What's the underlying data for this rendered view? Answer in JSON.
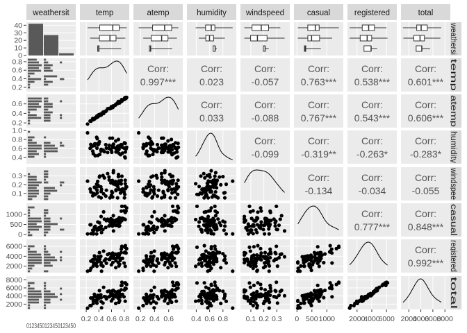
{
  "chart_data": {
    "type": "scatter-matrix",
    "variables": [
      "weathersit",
      "temp",
      "atemp",
      "humidity",
      "windspeed",
      "casual",
      "registered",
      "total"
    ],
    "strip_labels": {
      "top": [
        "weathersit",
        "temp",
        "atemp",
        "humidity",
        "windspeed",
        "casual",
        "registered",
        "total"
      ],
      "right": [
        "weathersi",
        "temp",
        "atemp",
        "humidity",
        "windspee",
        "casual",
        "registered",
        "total"
      ]
    },
    "weathersit_counts": [
      42,
      27,
      3
    ],
    "axes": {
      "weathersit": {
        "range": [
          0.4,
          3.6
        ]
      },
      "temp": {
        "range": [
          0.1,
          0.88
        ],
        "ticks": [
          0.2,
          0.4,
          0.6,
          0.8
        ]
      },
      "atemp": {
        "range": [
          0.1,
          0.8
        ],
        "ticks": [
          0.2,
          0.4,
          0.6
        ]
      },
      "humidity": {
        "range": [
          0.26,
          1.0
        ],
        "ticks": [
          0.4,
          0.6,
          0.8,
          1.0
        ],
        "ticks_x": [
          0.4,
          0.6,
          0.8
        ]
      },
      "windspeed": {
        "range": [
          0.02,
          0.4
        ],
        "ticks": [
          0.1,
          0.2,
          0.3
        ]
      },
      "casual": {
        "range": [
          -100,
          1550
        ],
        "ticks": [
          0,
          500,
          1000
        ]
      },
      "registered": {
        "range": [
          700,
          7400
        ],
        "ticks": [
          2000,
          4000,
          6000
        ]
      },
      "total": {
        "range": [
          700,
          8900
        ],
        "ticks": [
          2000,
          4000,
          6000,
          8000
        ]
      }
    },
    "count_axis": {
      "ticks": [
        0,
        10,
        20,
        30,
        40
      ]
    },
    "x_tick_labels": {
      "weathersit": "0123450123450123450",
      "temp": [
        "0.2",
        "0.4",
        "0.6",
        "0.8"
      ],
      "atemp": [
        "0.2",
        "0.4",
        "0.6"
      ],
      "humidity": [
        "0.4",
        "0.6",
        "0.8"
      ],
      "windspeed": [
        "0.1",
        "0.2",
        "0.3"
      ],
      "casual": [
        "0",
        "500",
        "1000"
      ],
      "registered": [
        "2000",
        "4000",
        "6000"
      ],
      "total": [
        "2000",
        "4000",
        "6000",
        "8000"
      ]
    },
    "correlation_prefix": "Corr:",
    "correlations": [
      [
        "temp",
        "atemp",
        "0.997***"
      ],
      [
        "temp",
        "humidity",
        "0.023"
      ],
      [
        "temp",
        "windspeed",
        "-0.057"
      ],
      [
        "temp",
        "casual",
        "0.763***"
      ],
      [
        "temp",
        "registered",
        "0.538***"
      ],
      [
        "temp",
        "total",
        "0.601***"
      ],
      [
        "atemp",
        "humidity",
        "0.033"
      ],
      [
        "atemp",
        "windspeed",
        "-0.088"
      ],
      [
        "atemp",
        "casual",
        "0.767***"
      ],
      [
        "atemp",
        "registered",
        "0.543***"
      ],
      [
        "atemp",
        "total",
        "0.606***"
      ],
      [
        "humidity",
        "windspeed",
        "-0.099"
      ],
      [
        "humidity",
        "casual",
        "-0.319**"
      ],
      [
        "humidity",
        "registered",
        "-0.263*"
      ],
      [
        "humidity",
        "total",
        "-0.283*"
      ],
      [
        "windspeed",
        "casual",
        "-0.134"
      ],
      [
        "windspeed",
        "registered",
        "-0.034"
      ],
      [
        "windspeed",
        "total",
        "-0.055"
      ],
      [
        "casual",
        "registered",
        "0.777***"
      ],
      [
        "casual",
        "total",
        "0.848***"
      ],
      [
        "registered",
        "total",
        "0.992***"
      ]
    ],
    "grid": true,
    "colors": {
      "panel": "#ebebeb",
      "strip": "#d9d9d9",
      "points": "#000000",
      "bars": "#595959",
      "corr_text": "#555555",
      "tick_text": "#4d4d4d"
    }
  }
}
